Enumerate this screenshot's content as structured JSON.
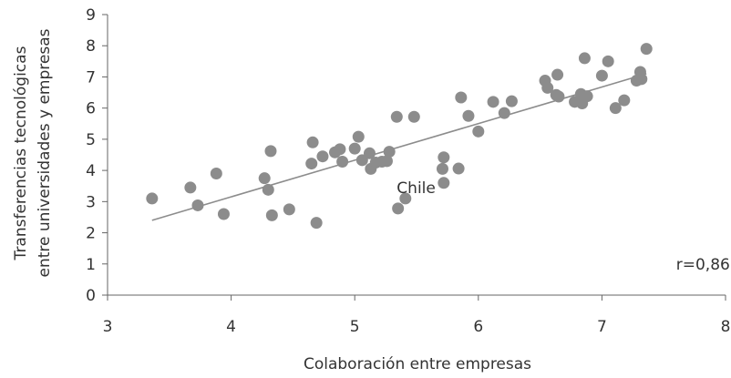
{
  "chart_data": {
    "type": "scatter",
    "xlabel": "Colaboración entre empresas",
    "ylabel_lines": [
      "Transferencias tecnológicas",
      "entre universidades y empresas"
    ],
    "xlim": [
      3,
      8
    ],
    "ylim": [
      0,
      9
    ],
    "x_ticks": [
      3,
      4,
      5,
      6,
      7,
      8
    ],
    "y_ticks": [
      0,
      1,
      2,
      3,
      4,
      5,
      6,
      7,
      8,
      9
    ],
    "grid": false,
    "marker_color": "#8c8c8c",
    "line_color": "#8c8c8c",
    "trendline": {
      "x": [
        3.36,
        7.36
      ],
      "y": [
        2.4,
        7.1
      ]
    },
    "annotations": [
      {
        "text": "Chile",
        "x": 5.34,
        "y": 3.45
      },
      {
        "text": "r=0,86",
        "x": 7.6,
        "y": 1.0
      }
    ],
    "points": [
      {
        "x": 3.36,
        "y": 3.1
      },
      {
        "x": 3.67,
        "y": 3.45
      },
      {
        "x": 3.73,
        "y": 2.88
      },
      {
        "x": 3.88,
        "y": 3.9
      },
      {
        "x": 3.94,
        "y": 2.6
      },
      {
        "x": 4.27,
        "y": 3.75
      },
      {
        "x": 4.3,
        "y": 3.38
      },
      {
        "x": 4.32,
        "y": 4.62
      },
      {
        "x": 4.33,
        "y": 2.56
      },
      {
        "x": 4.47,
        "y": 2.75
      },
      {
        "x": 4.65,
        "y": 4.22
      },
      {
        "x": 4.66,
        "y": 4.9
      },
      {
        "x": 4.69,
        "y": 2.32
      },
      {
        "x": 4.74,
        "y": 4.45
      },
      {
        "x": 4.84,
        "y": 4.58
      },
      {
        "x": 4.88,
        "y": 4.68
      },
      {
        "x": 4.9,
        "y": 4.28
      },
      {
        "x": 5.0,
        "y": 4.7
      },
      {
        "x": 5.03,
        "y": 5.08
      },
      {
        "x": 5.06,
        "y": 4.33
      },
      {
        "x": 5.12,
        "y": 4.55
      },
      {
        "x": 5.13,
        "y": 4.05
      },
      {
        "x": 5.17,
        "y": 4.25
      },
      {
        "x": 5.22,
        "y": 4.28
      },
      {
        "x": 5.26,
        "y": 4.3
      },
      {
        "x": 5.28,
        "y": 4.6
      },
      {
        "x": 5.34,
        "y": 5.72
      },
      {
        "x": 5.35,
        "y": 2.78
      },
      {
        "x": 5.41,
        "y": 3.1
      },
      {
        "x": 5.48,
        "y": 5.72
      },
      {
        "x": 5.71,
        "y": 4.05
      },
      {
        "x": 5.72,
        "y": 4.42
      },
      {
        "x": 5.72,
        "y": 3.6
      },
      {
        "x": 5.84,
        "y": 4.06
      },
      {
        "x": 5.86,
        "y": 6.34
      },
      {
        "x": 5.92,
        "y": 5.75
      },
      {
        "x": 6.0,
        "y": 5.25
      },
      {
        "x": 6.12,
        "y": 6.2
      },
      {
        "x": 6.21,
        "y": 5.84
      },
      {
        "x": 6.27,
        "y": 6.22
      },
      {
        "x": 6.54,
        "y": 6.88
      },
      {
        "x": 6.56,
        "y": 6.65
      },
      {
        "x": 6.63,
        "y": 6.42
      },
      {
        "x": 6.64,
        "y": 7.07
      },
      {
        "x": 6.65,
        "y": 6.37
      },
      {
        "x": 6.78,
        "y": 6.2
      },
      {
        "x": 6.83,
        "y": 6.45
      },
      {
        "x": 6.84,
        "y": 6.15
      },
      {
        "x": 6.86,
        "y": 7.6
      },
      {
        "x": 6.88,
        "y": 6.38
      },
      {
        "x": 7.0,
        "y": 7.04
      },
      {
        "x": 7.05,
        "y": 7.5
      },
      {
        "x": 7.11,
        "y": 6.0
      },
      {
        "x": 7.18,
        "y": 6.25
      },
      {
        "x": 7.28,
        "y": 6.88
      },
      {
        "x": 7.31,
        "y": 7.16
      },
      {
        "x": 7.32,
        "y": 6.93
      },
      {
        "x": 7.36,
        "y": 7.9
      }
    ]
  }
}
